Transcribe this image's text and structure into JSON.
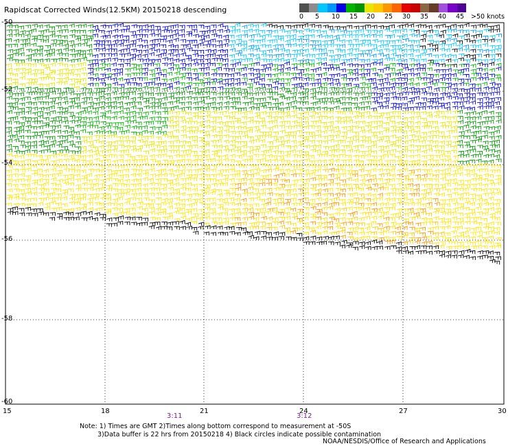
{
  "title": "Rapidscat Corrected Winds(12.5KM) 20150218 descending",
  "legend": {
    "colors": [
      "#505050",
      "#8c8c8c",
      "#00c8ff",
      "#0096ff",
      "#0000e6",
      "#00b400",
      "#009600",
      "#e6e600",
      "#ffc800",
      "#ff9600",
      "#ff6400",
      "#e60000",
      "#c80000",
      "#8c6446",
      "#643c28",
      "#a050dc",
      "#7800c8",
      "#500096"
    ],
    "labels": [
      "0",
      "5",
      "10",
      "15",
      "20",
      "25",
      "30",
      "35",
      "40",
      "45",
      ">50 knots"
    ]
  },
  "axes": {
    "lat_labels": [
      "-50",
      "-52",
      "-54",
      "-56",
      "-58",
      "-60"
    ],
    "lon_labels": [
      "15",
      "18",
      "21",
      "24",
      "27",
      "30"
    ]
  },
  "chart_data": {
    "type": "wind-barb map",
    "lon_range": [
      15,
      30
    ],
    "lat_range": [
      -60,
      -50
    ],
    "grid": true,
    "pass_times": [
      {
        "label": "3:11",
        "lon": 19.9
      },
      {
        "label": "3:12",
        "lon": 24.0
      }
    ]
  },
  "notes": [
    "Note: 1) Times are GMT 2)Times along bottom correspond to measurement at -50S",
    "3)Data buffer is 22 hrs from 20150218 4) Black circles indicate possible contamination"
  ],
  "credit": "NOAA/NESDIS/Office of Research and Applications"
}
